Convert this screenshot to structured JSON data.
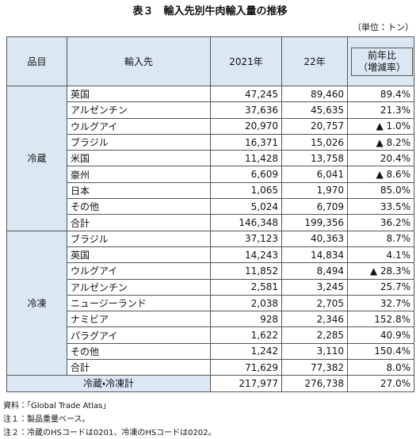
{
  "header": {
    "title": "表３　輸入先別牛肉輸入量の推移",
    "unit": "（単位：トン）"
  },
  "table": {
    "columns": [
      "品目",
      "輸入先",
      "2021年",
      "22年",
      "前年比",
      "（増減率）"
    ],
    "sections": [
      {
        "label": "冷蔵",
        "rows": [
          [
            "英国",
            "47,245",
            "89,460",
            "89.4%"
          ],
          [
            "アルゼンチン",
            "37,636",
            "45,635",
            "21.3%"
          ],
          [
            "ウルグアイ",
            "20,970",
            "20,757",
            "▲ 1.0%"
          ],
          [
            "ブラジル",
            "16,371",
            "15,026",
            "▲ 8.2%"
          ],
          [
            "米国",
            "11,428",
            "13,758",
            "20.4%"
          ],
          [
            "豪州",
            "6,609",
            "6,041",
            "▲ 8.6%"
          ],
          [
            "日本",
            "1,065",
            "1,970",
            "85.0%"
          ],
          [
            "その他",
            "5,024",
            "6,709",
            "33.5%"
          ],
          [
            "合計",
            "146,348",
            "199,356",
            "36.2%"
          ]
        ]
      },
      {
        "label": "冷凍",
        "rows": [
          [
            "ブラジル",
            "37,123",
            "40,363",
            "8.7%"
          ],
          [
            "英国",
            "14,243",
            "14,834",
            "4.1%"
          ],
          [
            "ウルグアイ",
            "11,852",
            "8,494",
            "▲ 28.3%"
          ],
          [
            "アルゼンチン",
            "2,581",
            "3,245",
            "25.7%"
          ],
          [
            "ニュージーランド",
            "2,038",
            "2,705",
            "32.7%"
          ],
          [
            "ナミビア",
            "928",
            "2,346",
            "152.8%"
          ],
          [
            "パラグアイ",
            "1,622",
            "2,285",
            "40.9%"
          ],
          [
            "その他",
            "1,242",
            "3,110",
            "150.4%"
          ],
          [
            "合計",
            "71,629",
            "77,382",
            "8.0%"
          ]
        ]
      }
    ],
    "total": [
      "冷蔵・冷凍計",
      "217,977",
      "276,738",
      "27.0%"
    ]
  },
  "notes": [
    "資料：「Global Trade Atlas」",
    "注１：製品重量ベース。",
    "注２：冷蔵のHSコードは0201、冷凍のHSコードは0202。"
  ]
}
